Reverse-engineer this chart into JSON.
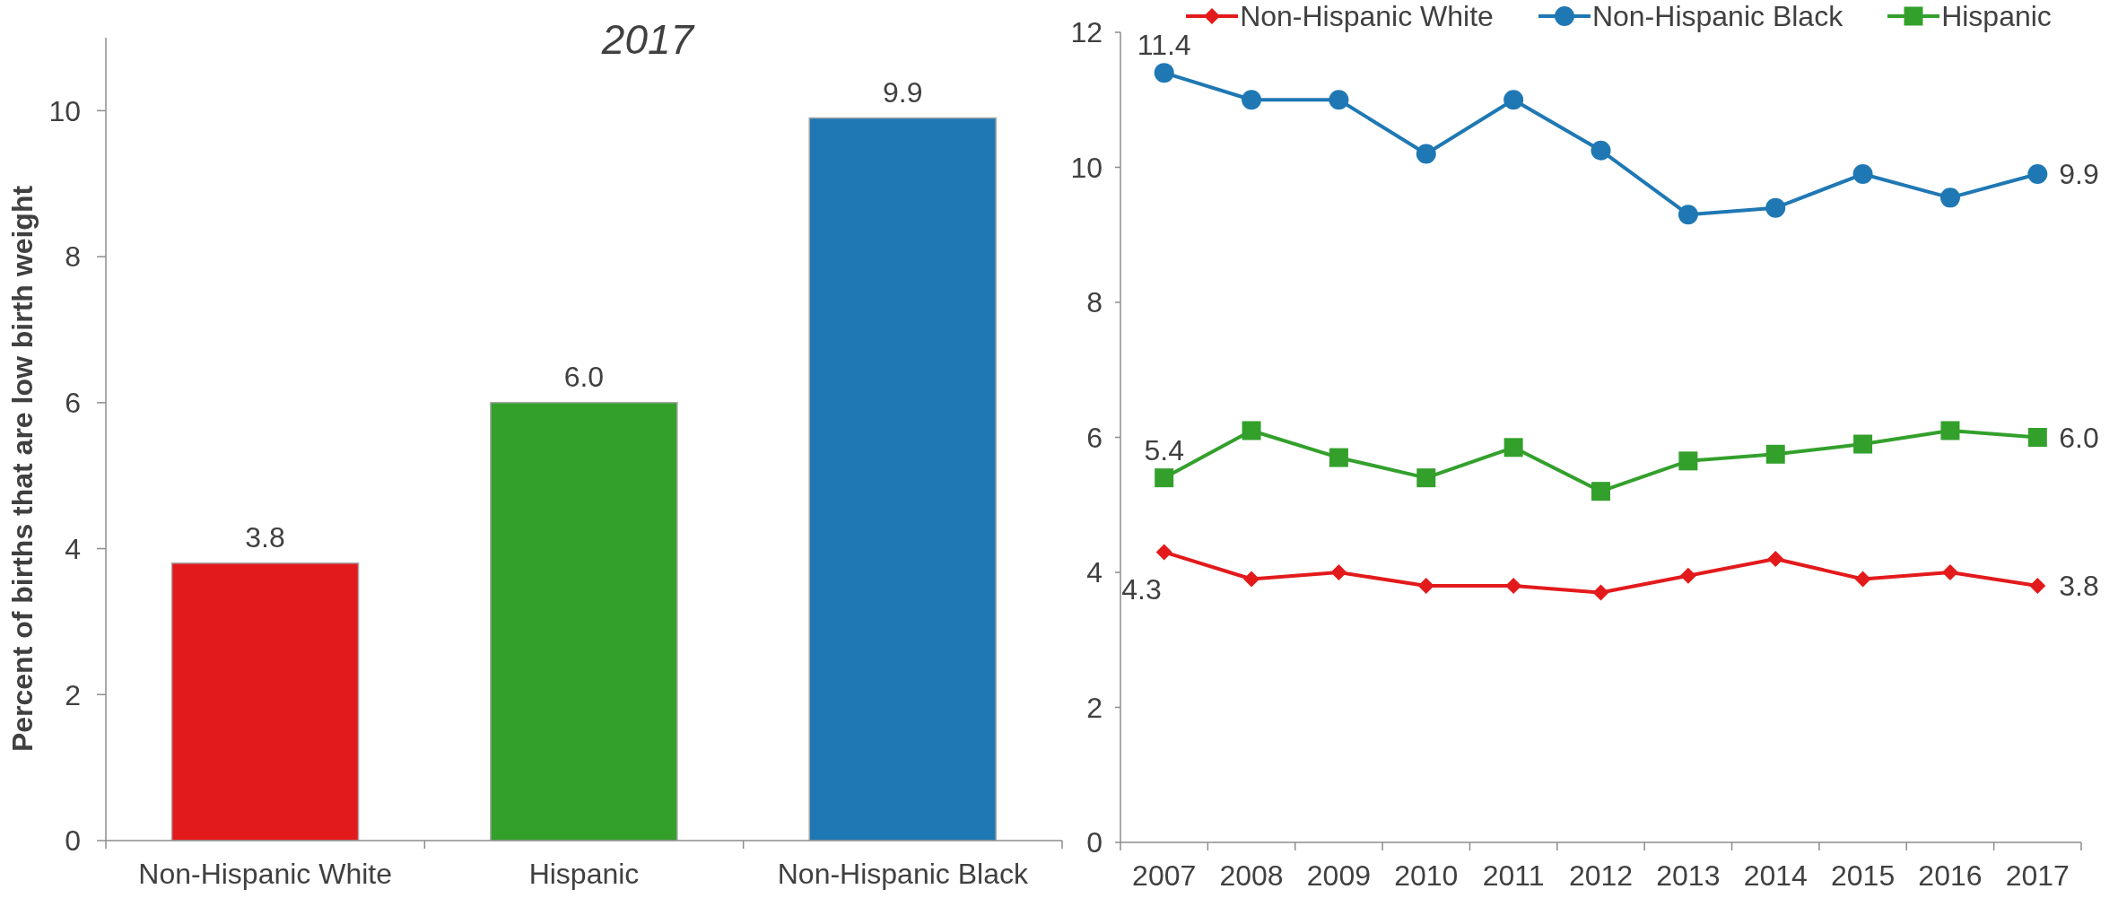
{
  "chart_data": [
    {
      "type": "bar",
      "title": "2017",
      "ylabel": "Percent of births that are low birth weight",
      "categories": [
        "Non-Hispanic White",
        "Hispanic",
        "Non-Hispanic Black"
      ],
      "values": [
        3.8,
        6.0,
        9.9
      ],
      "colors": [
        "#e31a1c",
        "#33a02c",
        "#1f78b4"
      ],
      "value_labels": [
        "3.8",
        "6.0",
        "9.9"
      ],
      "ylim": [
        0,
        11
      ],
      "yticks": [
        0,
        2,
        4,
        6,
        8,
        10
      ]
    },
    {
      "type": "line",
      "categories": [
        "2007",
        "2008",
        "2009",
        "2010",
        "2011",
        "2012",
        "2013",
        "2014",
        "2015",
        "2016",
        "2017"
      ],
      "series": [
        {
          "name": "Non-Hispanic White",
          "color": "#e31a1c",
          "marker": "diamond",
          "values": [
            4.3,
            3.9,
            4.0,
            3.8,
            3.8,
            3.7,
            3.95,
            4.2,
            3.9,
            4.0,
            3.8
          ],
          "value_labels": [
            "4.3",
            null,
            null,
            null,
            null,
            null,
            null,
            null,
            null,
            null,
            "3.8"
          ]
        },
        {
          "name": "Non-Hispanic Black",
          "color": "#1f78b4",
          "marker": "circle",
          "values": [
            11.4,
            11.0,
            11.0,
            10.2,
            11.0,
            10.25,
            9.3,
            9.4,
            9.9,
            9.55,
            9.9
          ],
          "value_labels": [
            "11.4",
            null,
            null,
            null,
            null,
            null,
            null,
            null,
            null,
            null,
            "9.9"
          ]
        },
        {
          "name": "Hispanic",
          "color": "#33a02c",
          "marker": "square",
          "values": [
            5.4,
            6.1,
            5.7,
            5.4,
            5.85,
            5.2,
            5.65,
            5.75,
            5.9,
            6.1,
            6.0
          ],
          "value_labels": [
            "5.4",
            null,
            null,
            null,
            null,
            null,
            null,
            null,
            null,
            null,
            "6.0"
          ]
        }
      ],
      "ylim": [
        0,
        12
      ],
      "yticks": [
        0,
        2,
        4,
        6,
        8,
        10,
        12
      ],
      "legend": "top",
      "line_style": "solid"
    }
  ]
}
